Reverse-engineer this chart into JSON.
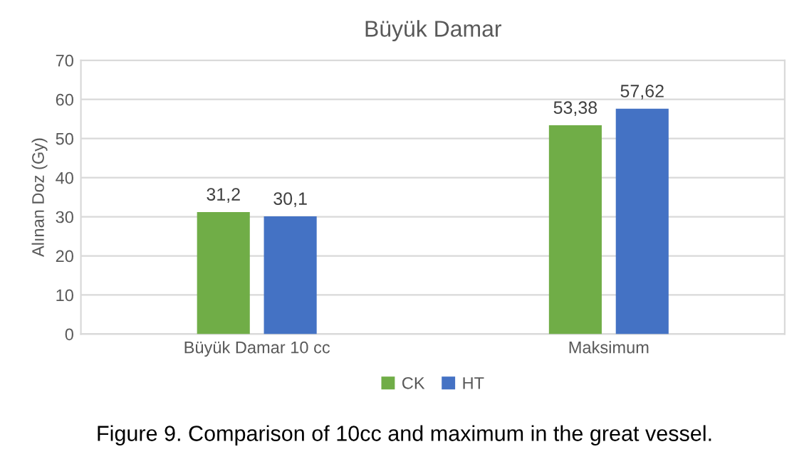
{
  "chart_data": {
    "type": "bar",
    "title": "Büyük Damar",
    "ylabel": "Alınan Doz (Gy)",
    "categories": [
      "Büyük Damar 10 cc",
      "Maksimum"
    ],
    "series": [
      {
        "name": "CK",
        "color": "#70ad47",
        "values": [
          31.2,
          53.38
        ],
        "value_labels": [
          "31,2",
          "53,38"
        ]
      },
      {
        "name": "HT",
        "color": "#4472c4",
        "values": [
          30.1,
          57.62
        ],
        "value_labels": [
          "30,1",
          "57,62"
        ]
      }
    ],
    "ylim": [
      0,
      70
    ],
    "yticks": [
      0,
      10,
      20,
      30,
      40,
      50,
      60,
      70
    ],
    "grid": "y",
    "legend": "bottom",
    "annotations": [
      "Figure 9. Comparison of 10cc and maximum in the great vessel."
    ]
  }
}
